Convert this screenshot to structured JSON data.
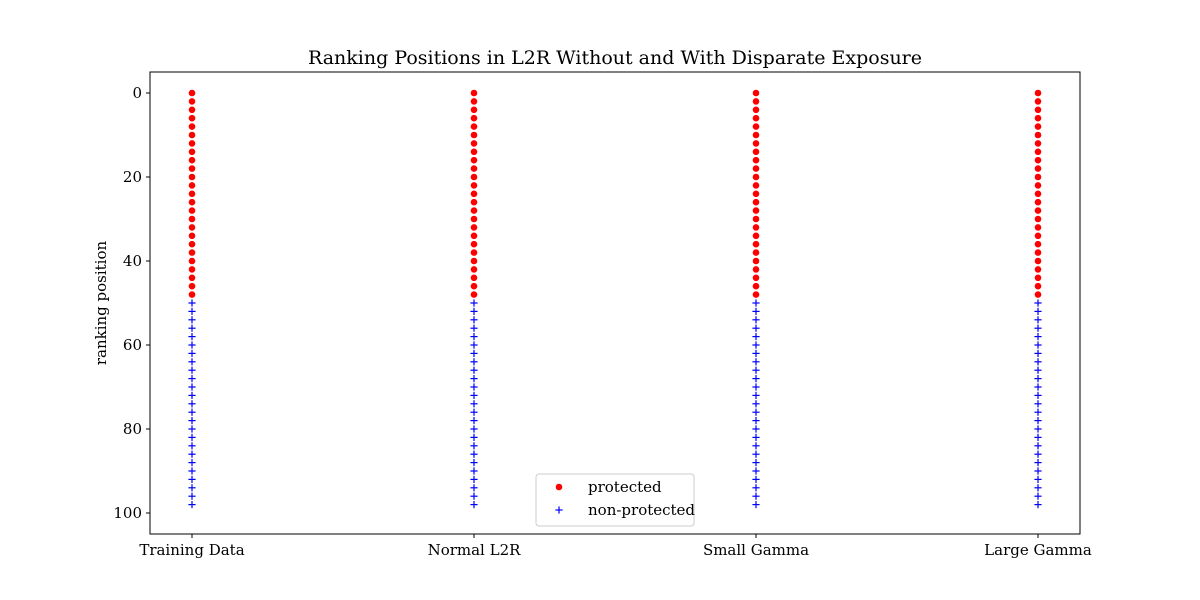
{
  "chart_data": {
    "type": "scatter",
    "title": "Ranking Positions in L2R Without and With Disparate Exposure",
    "xlabel": "",
    "ylabel": "ranking position",
    "categories": [
      "Training Data",
      "Normal L2R",
      "Small Gamma",
      "Large Gamma"
    ],
    "y_ticks": [
      "0",
      "20",
      "40",
      "60",
      "80",
      "100"
    ],
    "y_tick_values": [
      0,
      20,
      40,
      60,
      80,
      100
    ],
    "ylim": [
      105,
      -5
    ],
    "y_inverted": true,
    "grid": false,
    "legend_position": "bottom-center",
    "series": [
      {
        "name": "protected",
        "marker": "circle",
        "color": "#ff0000",
        "positions": [
          0,
          2,
          4,
          6,
          8,
          10,
          12,
          14,
          16,
          18,
          20,
          22,
          24,
          26,
          28,
          30,
          32,
          34,
          36,
          38,
          40,
          42,
          44,
          46,
          48
        ]
      },
      {
        "name": "non-protected",
        "marker": "plus",
        "color": "#0000ff",
        "positions": [
          50,
          52,
          54,
          56,
          58,
          60,
          62,
          64,
          66,
          68,
          70,
          72,
          74,
          76,
          78,
          80,
          82,
          84,
          86,
          88,
          90,
          92,
          94,
          96,
          98
        ]
      }
    ]
  }
}
